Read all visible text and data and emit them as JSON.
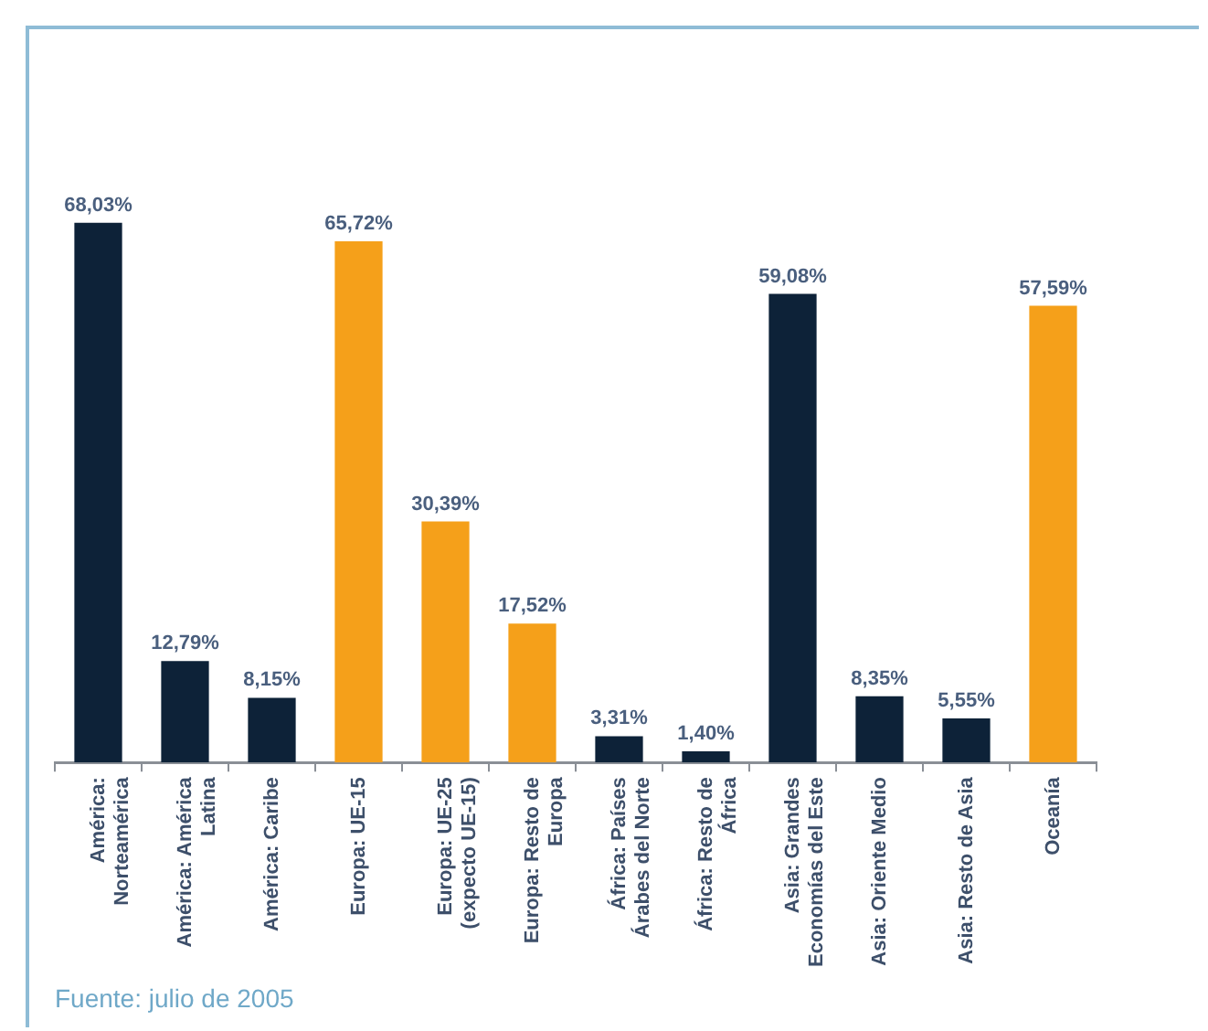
{
  "chart_data": {
    "type": "bar",
    "categories": [
      "América: Norteamérica",
      "América: América Latina",
      "América: Caribe",
      "Europa: UE-15",
      "Europa: UE-25 (expecto UE-15)",
      "Europa: Resto de Europa",
      "África: Países Árabes del Norte",
      "África: Resto de África",
      "Asia: Grandes Economías del Este",
      "Asia: Oriente Medio",
      "Asia: Resto de Asia",
      "Oceanía"
    ],
    "values": [
      68.03,
      12.79,
      8.15,
      65.72,
      30.39,
      17.52,
      3.31,
      1.4,
      59.08,
      8.35,
      5.55,
      57.59
    ],
    "colors": [
      "#0d2238",
      "#0d2238",
      "#0d2238",
      "#f5a01a",
      "#f5a01a",
      "#f5a01a",
      "#0d2238",
      "#0d2238",
      "#0d2238",
      "#0d2238",
      "#0d2238",
      "#f5a01a"
    ],
    "value_labels": [
      "68,03%",
      "12,79%",
      "8,15%",
      "65,72%",
      "30,39%",
      "17,52%",
      "3,31%",
      "1,40%",
      "59,08%",
      "8,35%",
      "5,55%",
      "57,59%"
    ],
    "annotations": [
      "Fuente: julio de 2005"
    ]
  }
}
